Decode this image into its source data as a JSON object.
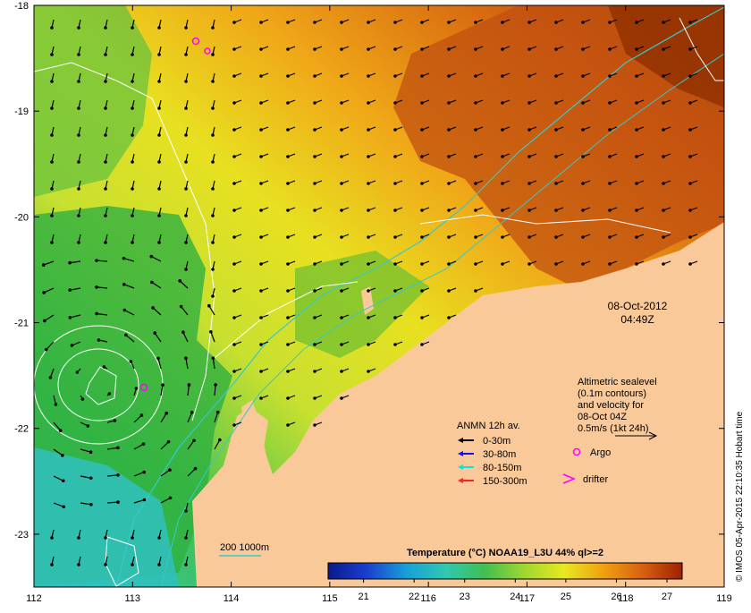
{
  "map": {
    "lon_range": [
      112,
      119
    ],
    "lat_range": [
      -23.5,
      -18
    ],
    "x_ticks": [
      "112",
      "113",
      "114",
      "115",
      "116",
      "117",
      "118",
      "119"
    ],
    "y_ticks": [
      "-18",
      "-19",
      "-20",
      "-21",
      "-22",
      "-23"
    ],
    "land_color": "#f9c99a",
    "contour_color": "#ffffff",
    "bathy_color": "#38c8c8"
  },
  "timestamp": {
    "date": "08-Oct-2012",
    "time": "04:49Z"
  },
  "altimetry": {
    "lines": [
      "Altimetric sealevel",
      "(0.1m contours)",
      "and velocity for",
      "08-Oct 04Z",
      "0.5m/s (1kt 24h)"
    ]
  },
  "legend": {
    "title": "ANMN 12h av.",
    "items": [
      {
        "label": "0-30m",
        "color": "#000000"
      },
      {
        "label": "30-80m",
        "color": "#1010ff"
      },
      {
        "label": "80-150m",
        "color": "#00e8e8"
      },
      {
        "label": "150-300m",
        "color": "#ff2020"
      }
    ],
    "argo_label": "Argo",
    "drifter_label": "drifter",
    "marker_color": "#ff00ff"
  },
  "bathymetry_legend": {
    "label": "200  1000m"
  },
  "colorbar": {
    "title": "Temperature (°C) NOAA19_L3U 44% ql>=2",
    "ticks": [
      "21",
      "22",
      "23",
      "24",
      "25",
      "26",
      "27"
    ],
    "stops": [
      "#0a1a8a",
      "#1a40d0",
      "#18a0d8",
      "#30c8b0",
      "#40c050",
      "#a0d830",
      "#e8e820",
      "#f0a010",
      "#d86010",
      "#a02000"
    ]
  },
  "credit": "© IMOS 05-Apr-2015 22:10:35 Hobart time"
}
